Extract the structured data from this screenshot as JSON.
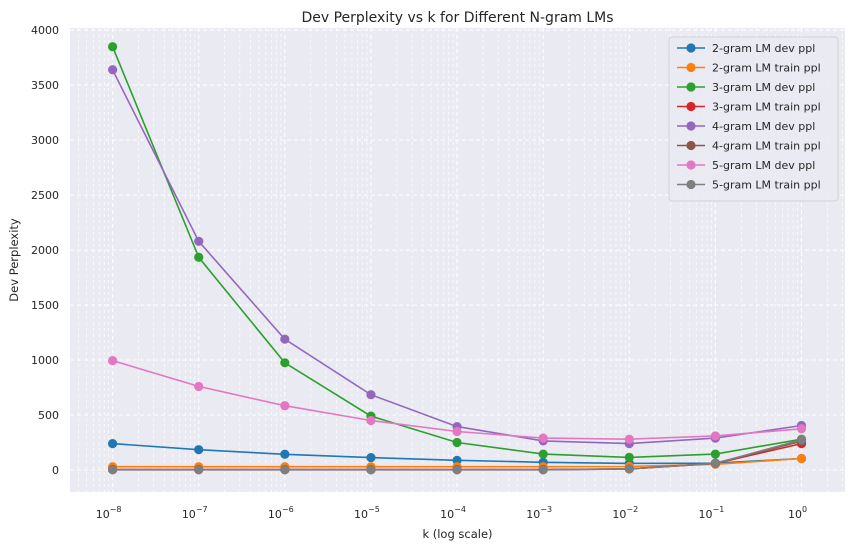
{
  "chart_data": {
    "type": "line",
    "title": "Dev Perplexity vs k for Different N-gram LMs",
    "xlabel": "k (log scale)",
    "ylabel": "Dev Perplexity",
    "x_scale": "log",
    "xlim": [
      3.2e-09,
      3.2
    ],
    "ylim": [
      -200,
      4020
    ],
    "grid": true,
    "legend_position": "top-right",
    "x": [
      1e-08,
      1e-07,
      1e-06,
      1e-05,
      0.0001,
      0.001,
      0.01,
      0.1,
      1
    ],
    "x_ticks": [
      {
        "value": 1e-08,
        "base": "10",
        "exp": "−8"
      },
      {
        "value": 1e-07,
        "base": "10",
        "exp": "−7"
      },
      {
        "value": 1e-06,
        "base": "10",
        "exp": "−6"
      },
      {
        "value": 1e-05,
        "base": "10",
        "exp": "−5"
      },
      {
        "value": 0.0001,
        "base": "10",
        "exp": "−4"
      },
      {
        "value": 0.001,
        "base": "10",
        "exp": "−3"
      },
      {
        "value": 0.01,
        "base": "10",
        "exp": "−2"
      },
      {
        "value": 0.1,
        "base": "10",
        "exp": "−1"
      },
      {
        "value": 1,
        "base": "10",
        "exp": "0"
      }
    ],
    "y_ticks": [
      0,
      500,
      1000,
      1500,
      2000,
      2500,
      3000,
      3500,
      4000
    ],
    "series": [
      {
        "name": "2-gram LM dev ppl",
        "color": "#1f77b4",
        "values": [
          240,
          185,
          143,
          113,
          88,
          70,
          60,
          62,
          105
        ]
      },
      {
        "name": "2-gram LM train ppl",
        "color": "#ff7f0e",
        "values": [
          30,
          30,
          30,
          30,
          30,
          30,
          32,
          52,
          105
        ]
      },
      {
        "name": "3-gram LM dev ppl",
        "color": "#2ca02c",
        "values": [
          3850,
          1935,
          975,
          490,
          250,
          145,
          115,
          145,
          280
        ]
      },
      {
        "name": "3-gram LM train ppl",
        "color": "#d62728",
        "values": [
          5,
          5,
          5,
          5,
          5,
          5,
          10,
          60,
          240
        ]
      },
      {
        "name": "4-gram LM dev ppl",
        "color": "#9467bd",
        "values": [
          3640,
          2080,
          1190,
          685,
          395,
          265,
          240,
          290,
          405
        ]
      },
      {
        "name": "4-gram LM train ppl",
        "color": "#8c564b",
        "values": [
          3,
          3,
          3,
          3,
          3,
          3,
          10,
          62,
          262
        ]
      },
      {
        "name": "5-gram LM dev ppl",
        "color": "#e377c2",
        "values": [
          995,
          760,
          585,
          450,
          350,
          290,
          280,
          310,
          375
        ]
      },
      {
        "name": "5-gram LM train ppl",
        "color": "#7f7f7f",
        "values": [
          2,
          2,
          2,
          2,
          2,
          2,
          10,
          60,
          275
        ]
      }
    ]
  }
}
